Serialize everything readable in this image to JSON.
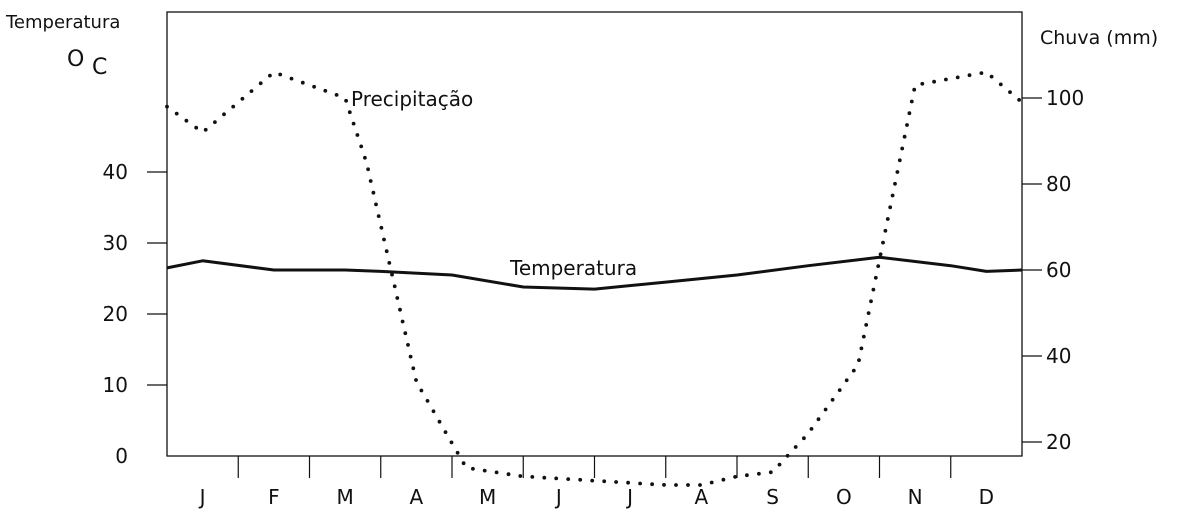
{
  "chart_data": {
    "type": "line",
    "categories": [
      "J",
      "F",
      "M",
      "A",
      "M",
      "J",
      "J",
      "A",
      "S",
      "O",
      "N",
      "D"
    ],
    "left_axis": {
      "label_line1": "Temperatura",
      "label_unit_o": "O",
      "label_unit_c": "C",
      "ticks": [
        "0",
        "10",
        "20",
        "30",
        "40"
      ],
      "ylim": [
        0,
        55
      ]
    },
    "right_axis": {
      "label": "Chuva (mm)",
      "ticks": [
        "20",
        "40",
        "60",
        "80",
        "100"
      ],
      "ylim": [
        0,
        110
      ]
    },
    "series": [
      {
        "name": "Temperatura",
        "axis": "left",
        "style": "solid",
        "x": [
          0.0,
          0.5,
          1.5,
          2.5,
          3.0,
          4.0,
          5.0,
          6.0,
          7.0,
          8.0,
          9.0,
          10.0,
          11.0,
          11.5,
          12.0
        ],
        "y": [
          26.5,
          27.5,
          26.2,
          26.2,
          26.0,
          25.5,
          23.8,
          23.5,
          24.5,
          25.5,
          26.8,
          28.0,
          26.8,
          26.0,
          26.2
        ]
      },
      {
        "name": "Precipitação",
        "axis": "right",
        "style": "dotted",
        "x": [
          0.0,
          0.5,
          1.5,
          2.5,
          2.8,
          3.5,
          4.2,
          5.0,
          6.0,
          7.0,
          7.5,
          8.0,
          8.5,
          9.0,
          9.7,
          10.5,
          11.5,
          12.0
        ],
        "y": [
          98,
          92,
          106,
          100,
          85,
          34,
          14,
          12,
          11,
          10,
          10,
          12,
          13,
          22,
          38,
          103,
          106,
          99
        ]
      }
    ],
    "annotations": {
      "precip_label": "Precipitação",
      "temp_label": "Temperatura"
    },
    "grid": false
  }
}
